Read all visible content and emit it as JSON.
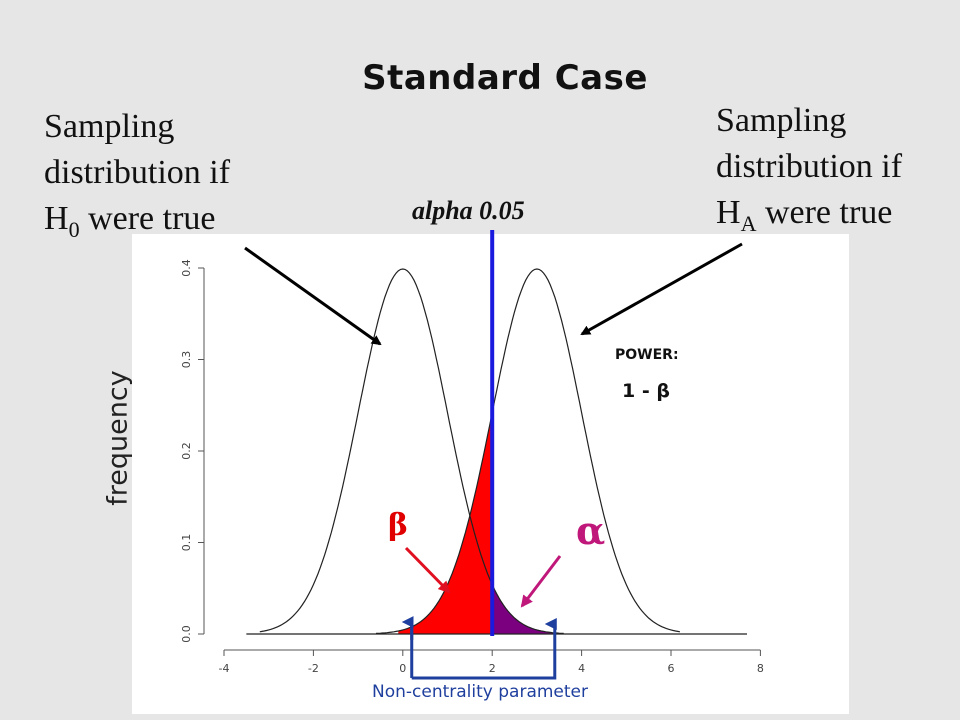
{
  "slide": {
    "title": "Standard Case"
  },
  "callouts": {
    "h0": {
      "line1": "Sampling",
      "line2": "distribution if",
      "prefix": "H",
      "subscript": "0",
      "suffix": " were true"
    },
    "ha": {
      "line1": "Sampling",
      "line2": "distribution if",
      "prefix": "H",
      "subscript": "A",
      "suffix": " were true"
    }
  },
  "alpha_label": "alpha 0.05",
  "power": {
    "title": "POWER:",
    "formula": "1 - β"
  },
  "symbols": {
    "beta": "β",
    "alpha": "α"
  },
  "ncp_label": "Non-centrality parameter",
  "colors": {
    "beta_fill": "#ff0000",
    "alpha_fill": "#7a0080",
    "critical_line": "#1a1adf",
    "beta_arrow": "#e01020",
    "alpha_arrow": "#c0187a",
    "bracket": "#1f3f9e"
  },
  "chart_data": {
    "type": "line",
    "ylabel": "frequency",
    "xlim": [
      -4,
      8
    ],
    "ylim": [
      0,
      0.4
    ],
    "x_ticks": [
      "-4",
      "-2",
      "0",
      "2",
      "4",
      "6",
      "8"
    ],
    "y_ticks": [
      "0.0",
      "0.1",
      "0.2",
      "0.3",
      "0.4"
    ],
    "curves": [
      {
        "mean": 0,
        "sd": 1
      },
      {
        "mean": 3,
        "sd": 1
      }
    ],
    "critical_value": 2,
    "bracket_range": [
      0.2,
      3.4
    ]
  }
}
